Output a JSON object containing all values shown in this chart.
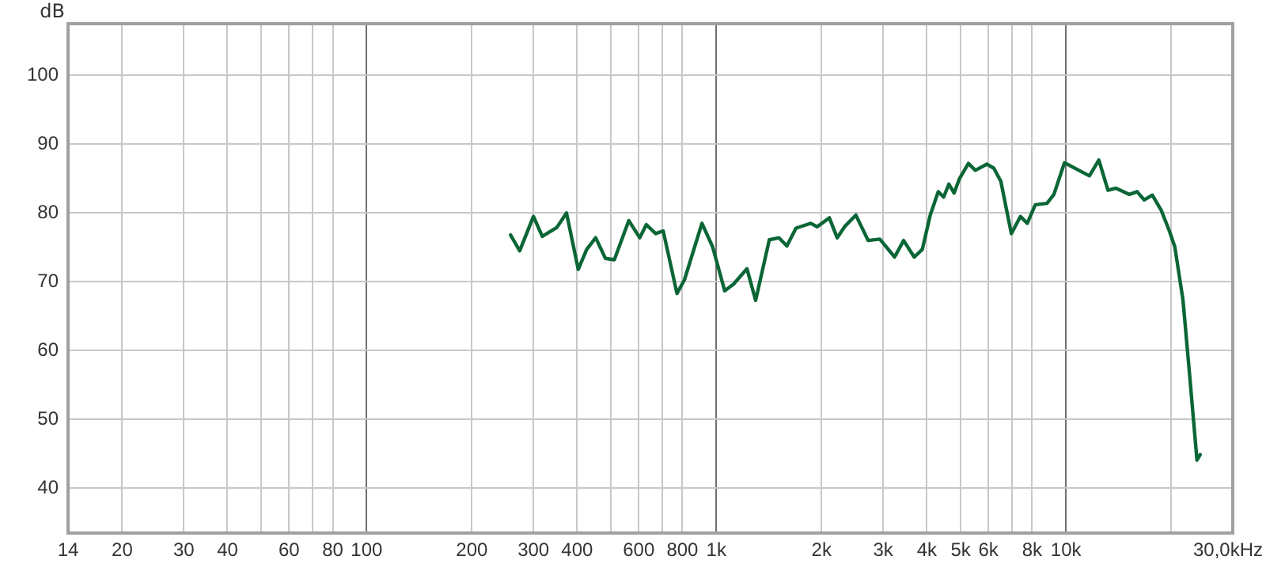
{
  "chart_data": {
    "type": "line",
    "ylabel": "dB",
    "xlabel": "Hz",
    "log": "x",
    "grid": true,
    "legend": false,
    "marker": "none",
    "line_style": "solid",
    "xlim": [
      14,
      30000
    ],
    "ylim": [
      33.5,
      107.5
    ],
    "xticks": [
      14,
      20,
      30,
      40,
      {
        "value": 50,
        "label": null
      },
      60,
      {
        "value": 70,
        "label": null
      },
      80,
      100,
      200,
      300,
      400,
      {
        "value": 500,
        "label": null
      },
      600,
      {
        "value": 700,
        "label": null
      },
      800,
      {
        "value": 1000,
        "label": "1k"
      },
      {
        "value": 2000,
        "label": "2k"
      },
      {
        "value": 3000,
        "label": "3k"
      },
      {
        "value": 4000,
        "label": "4k"
      },
      {
        "value": 5000,
        "label": "5k"
      },
      {
        "value": 6000,
        "label": "6k"
      },
      {
        "value": 7000,
        "label": null
      },
      {
        "value": 8000,
        "label": "8k"
      },
      {
        "value": 10000,
        "label": "10k"
      },
      {
        "value": 20000,
        "label": null
      },
      {
        "value": 30000,
        "label": "30,0k"
      }
    ],
    "yticks": [
      40,
      50,
      60,
      70,
      80,
      90,
      100
    ],
    "series": [
      {
        "color": "#0b6636",
        "x": [
          258,
          274,
          300,
          318,
          350,
          373,
          403,
          426,
          452,
          482,
          511,
          562,
          604,
          631,
          671,
          705,
          772,
          811,
          910,
          976,
          1057,
          1122,
          1224,
          1296,
          1418,
          1511,
          1592,
          1690,
          1863,
          1943,
          2105,
          2217,
          2336,
          2507,
          2719,
          2936,
          3236,
          3434,
          3681,
          3883,
          4092,
          4313,
          4470,
          4626,
          4789,
          4961,
          5262,
          5506,
          5946,
          6221,
          6514,
          6980,
          7410,
          7753,
          8172,
          8826,
          9237,
          9905,
          11670,
          12420,
          13190,
          13900,
          15170,
          15980,
          16740,
          17660,
          18730,
          19760,
          20480,
          21610,
          22560,
          23700,
          24210
        ],
        "values": [
          76.8,
          74.5,
          79.5,
          76.6,
          77.9,
          80.0,
          71.8,
          74.7,
          76.4,
          73.4,
          73.2,
          78.9,
          76.4,
          78.3,
          77.0,
          77.4,
          68.3,
          70.3,
          78.5,
          75.1,
          68.7,
          69.7,
          71.9,
          67.3,
          76.1,
          76.4,
          75.2,
          77.8,
          78.5,
          78.0,
          79.3,
          76.4,
          78.1,
          79.7,
          76.0,
          76.2,
          73.6,
          76.0,
          73.6,
          74.7,
          79.7,
          83.1,
          82.3,
          84.2,
          82.9,
          85.0,
          87.2,
          86.2,
          87.1,
          86.5,
          84.6,
          77.0,
          79.5,
          78.5,
          81.2,
          81.4,
          82.7,
          87.3,
          85.4,
          87.7,
          83.3,
          83.6,
          82.7,
          83.1,
          81.9,
          82.6,
          80.4,
          77.4,
          75.1,
          67.4,
          56.7,
          44.1,
          44.9
        ]
      }
    ]
  }
}
